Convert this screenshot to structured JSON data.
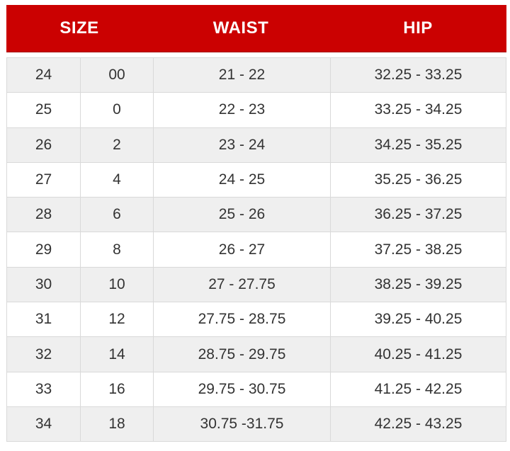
{
  "chart_data": {
    "type": "table",
    "title": "",
    "columns": [
      {
        "label": "SIZE",
        "span": 2
      },
      {
        "label": "WAIST",
        "span": 1
      },
      {
        "label": "HIP",
        "span": 1
      }
    ],
    "rows": [
      [
        "24",
        "00",
        "21 - 22",
        "32.25 - 33.25"
      ],
      [
        "25",
        "0",
        "22 - 23",
        "33.25 - 34.25"
      ],
      [
        "26",
        "2",
        "23 - 24",
        "34.25 - 35.25"
      ],
      [
        "27",
        "4",
        "24 - 25",
        "35.25 - 36.25"
      ],
      [
        "28",
        "6",
        "25 - 26",
        "36.25 - 37.25"
      ],
      [
        "29",
        "8",
        "26 - 27",
        "37.25 - 38.25"
      ],
      [
        "30",
        "10",
        "27 - 27.75",
        "38.25 - 39.25"
      ],
      [
        "31",
        "12",
        "27.75 - 28.75",
        "39.25 - 40.25"
      ],
      [
        "32",
        "14",
        "28.75 - 29.75",
        "40.25 - 41.25"
      ],
      [
        "33",
        "16",
        "29.75 - 30.75",
        "41.25 - 42.25"
      ],
      [
        "34",
        "18",
        "30.75 -31.75",
        "42.25 - 43.25"
      ]
    ],
    "layout": {
      "striped": true,
      "stripe_rows": "odd",
      "header_position": "top"
    }
  },
  "colors": {
    "header_bg": "#cb0101",
    "header_text": "#ffffff",
    "row_alt_bg": "#efefef",
    "row_bg": "#ffffff",
    "border": "#d9d9d9",
    "text": "#333333"
  }
}
